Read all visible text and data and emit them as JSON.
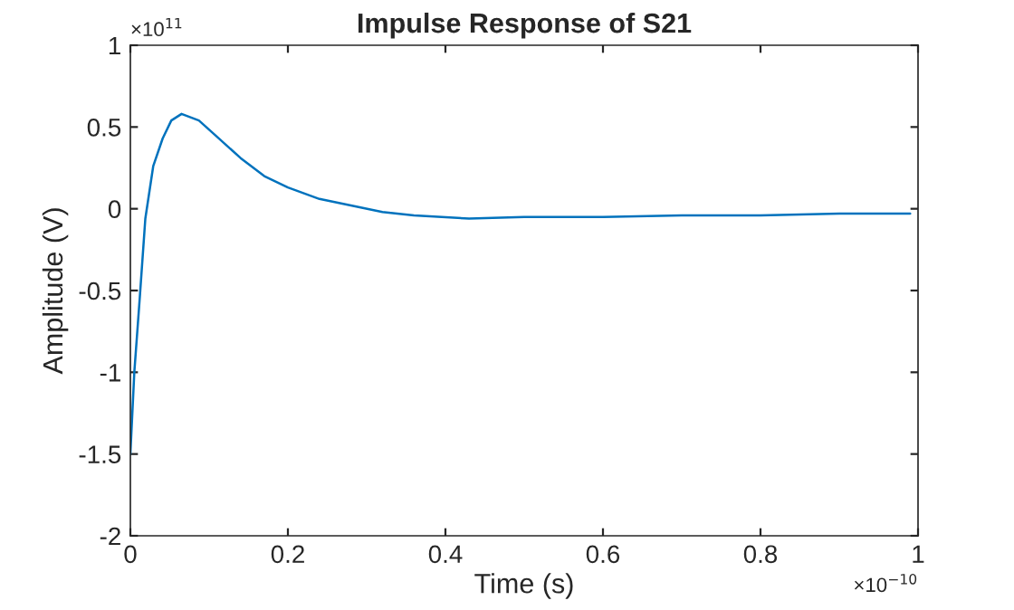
{
  "chart_data": {
    "type": "line",
    "title": "Impulse Response of S21",
    "xlabel": "Time (s)",
    "ylabel": "Amplitude (V)",
    "annotations": [
      "×10$^{11}$",
      "×10$^{−10}$"
    ],
    "series": [
      {
        "color": "#0072bd",
        "x": [
          0,
          0.005,
          0.012,
          0.019,
          0.029,
          0.041,
          0.052,
          0.065,
          0.087,
          0.11,
          0.14,
          0.17,
          0.2,
          0.24,
          0.28,
          0.32,
          0.36,
          0.43,
          0.5,
          0.6,
          0.7,
          0.8,
          0.9,
          0.99
        ],
        "values": [
          -1.5,
          -1.0,
          -0.54,
          -0.06,
          0.26,
          0.43,
          0.54,
          0.58,
          0.54,
          0.44,
          0.31,
          0.2,
          0.13,
          0.06,
          0.02,
          -0.02,
          -0.04,
          -0.06,
          -0.05,
          -0.05,
          -0.04,
          -0.04,
          -0.03,
          -0.03
        ]
      }
    ],
    "xlim": [
      0,
      1
    ],
    "xticks": [
      0,
      0.2,
      0.4,
      0.6,
      0.8,
      1
    ],
    "ylim": [
      -2,
      1
    ],
    "yticks": [
      -2,
      -1.5,
      -1,
      -0.5,
      0,
      0.5,
      1
    ],
    "grid": false,
    "legend": false,
    "marker": "none",
    "line_style": "solid"
  }
}
